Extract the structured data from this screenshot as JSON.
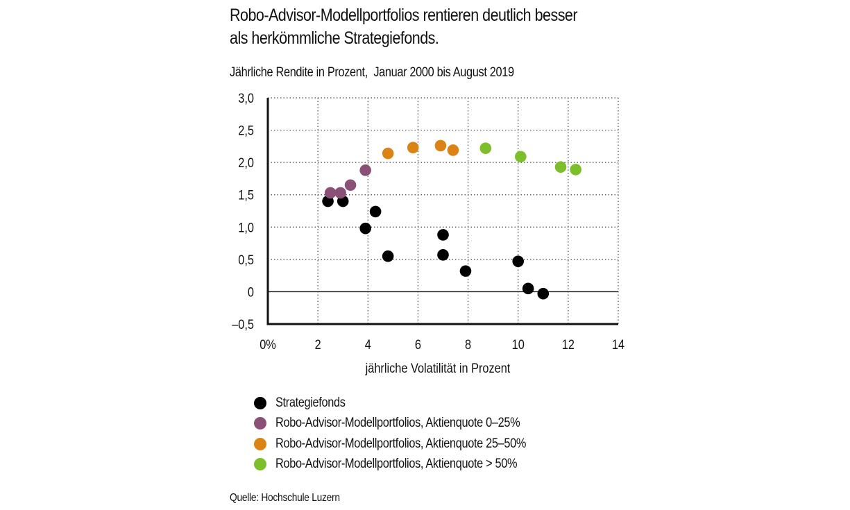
{
  "header": {
    "title_line1": "Robo-Advisor-Modellportfolios rentieren deutlich besser",
    "title_line2": "als herkömmliche Strategiefonds.",
    "subtitle": "Jährliche Rendite in Prozent,  Januar 2000 bis August 2019"
  },
  "source": "Quelle: Hochschule Luzern",
  "chart_data": {
    "type": "scatter",
    "title": "Robo-Advisor-Modellportfolios rentieren deutlich besser als herkömmliche Strategiefonds.",
    "subtitle": "Jährliche Rendite in Prozent,  Januar 2000 bis August 2019",
    "xlabel": "jährliche Volatilität in Prozent",
    "ylabel": "",
    "xlim": [
      0,
      14
    ],
    "ylim": [
      -0.5,
      3.0
    ],
    "xticks": [
      0,
      2,
      4,
      6,
      8,
      10,
      12,
      14
    ],
    "xtick_labels": [
      "0%",
      "2",
      "4",
      "6",
      "8",
      "10",
      "12",
      "14"
    ],
    "yticks": [
      3.0,
      2.5,
      2.0,
      1.5,
      1.0,
      0.5,
      0,
      -0.5
    ],
    "ytick_labels": [
      "3,0",
      "2,5",
      "2,0",
      "1,5",
      "1,0",
      "0,5",
      "0",
      "–0,5"
    ],
    "grid": true,
    "grid_style": "dotted",
    "zero_line": true,
    "legend_position": "below",
    "series": [
      {
        "name": "Strategiefonds",
        "color": "#000000",
        "points": [
          {
            "x": 2.4,
            "y": 1.4
          },
          {
            "x": 3.0,
            "y": 1.4
          },
          {
            "x": 4.3,
            "y": 1.24
          },
          {
            "x": 3.9,
            "y": 0.98
          },
          {
            "x": 4.8,
            "y": 0.55
          },
          {
            "x": 7.0,
            "y": 0.88
          },
          {
            "x": 7.0,
            "y": 0.57
          },
          {
            "x": 7.9,
            "y": 0.32
          },
          {
            "x": 10.0,
            "y": 0.47
          },
          {
            "x": 10.4,
            "y": 0.05
          },
          {
            "x": 11.0,
            "y": -0.03
          }
        ]
      },
      {
        "name": "Robo-Advisor-Modellportfolios, Aktienquote 0–25%",
        "color": "#8b5077",
        "points": [
          {
            "x": 2.5,
            "y": 1.53
          },
          {
            "x": 2.9,
            "y": 1.53
          },
          {
            "x": 3.3,
            "y": 1.65
          },
          {
            "x": 3.9,
            "y": 1.88
          }
        ]
      },
      {
        "name": "Robo-Advisor-Modellportfolios, Aktienquote 25–50%",
        "color": "#db8415",
        "points": [
          {
            "x": 4.8,
            "y": 2.14
          },
          {
            "x": 5.8,
            "y": 2.23
          },
          {
            "x": 6.9,
            "y": 2.26
          },
          {
            "x": 7.4,
            "y": 2.19
          }
        ]
      },
      {
        "name": "Robo-Advisor-Modellportfolios, Aktienquote > 50%",
        "color": "#7dbf2b",
        "points": [
          {
            "x": 8.7,
            "y": 2.22
          },
          {
            "x": 10.1,
            "y": 2.09
          },
          {
            "x": 11.7,
            "y": 1.93
          },
          {
            "x": 12.3,
            "y": 1.89
          }
        ]
      }
    ]
  }
}
